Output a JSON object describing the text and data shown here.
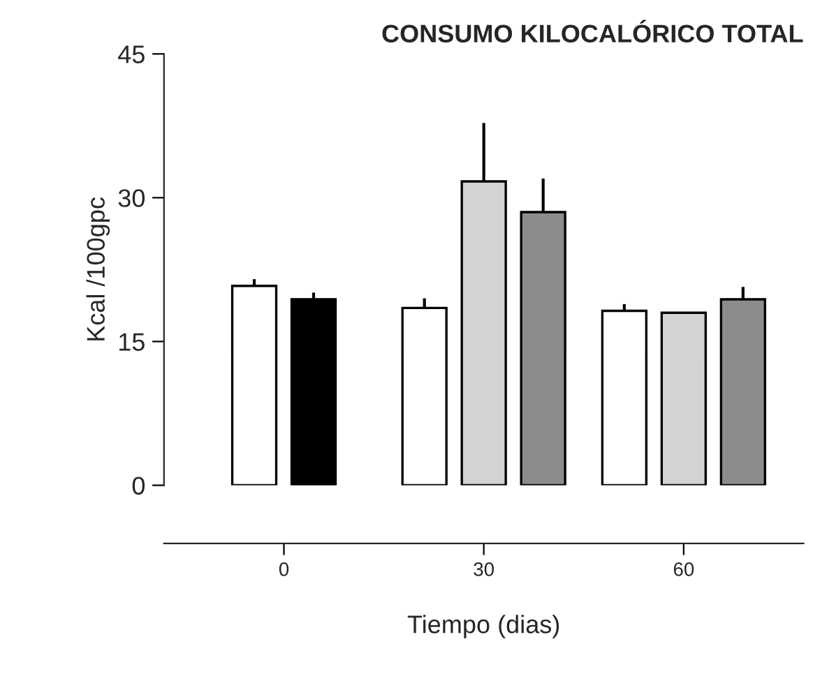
{
  "chart_data": {
    "type": "bar",
    "title": "CONSUMO KILOCALÓRICO TOTAL",
    "xlabel": "Tiempo (dias)",
    "ylabel": "Kcal /100gpc",
    "categories": [
      "0",
      "30",
      "60"
    ],
    "series": [
      {
        "color": "#ffffff",
        "values": [
          20.8,
          18.5,
          18.2
        ],
        "errors": [
          [
            20.8,
            21.5
          ],
          [
            18.5,
            19.5
          ],
          [
            18.2,
            18.9
          ]
        ]
      },
      {
        "color": "#000000",
        "values": [
          19.4,
          null,
          null
        ],
        "errors": [
          [
            19.4,
            20.1
          ],
          null,
          null
        ]
      },
      {
        "color": "#d3d3d3",
        "values": [
          null,
          31.7,
          18.0
        ],
        "errors": [
          null,
          [
            31.7,
            37.8
          ],
          null
        ]
      },
      {
        "color": "#8c8c8c",
        "values": [
          null,
          28.5,
          19.4
        ],
        "errors": [
          null,
          [
            28.5,
            32.0
          ],
          [
            19.4,
            20.7
          ]
        ]
      }
    ],
    "ylim": [
      0,
      45
    ],
    "yticks": [
      0,
      15,
      30,
      45
    ],
    "grid": false,
    "legend": false
  }
}
